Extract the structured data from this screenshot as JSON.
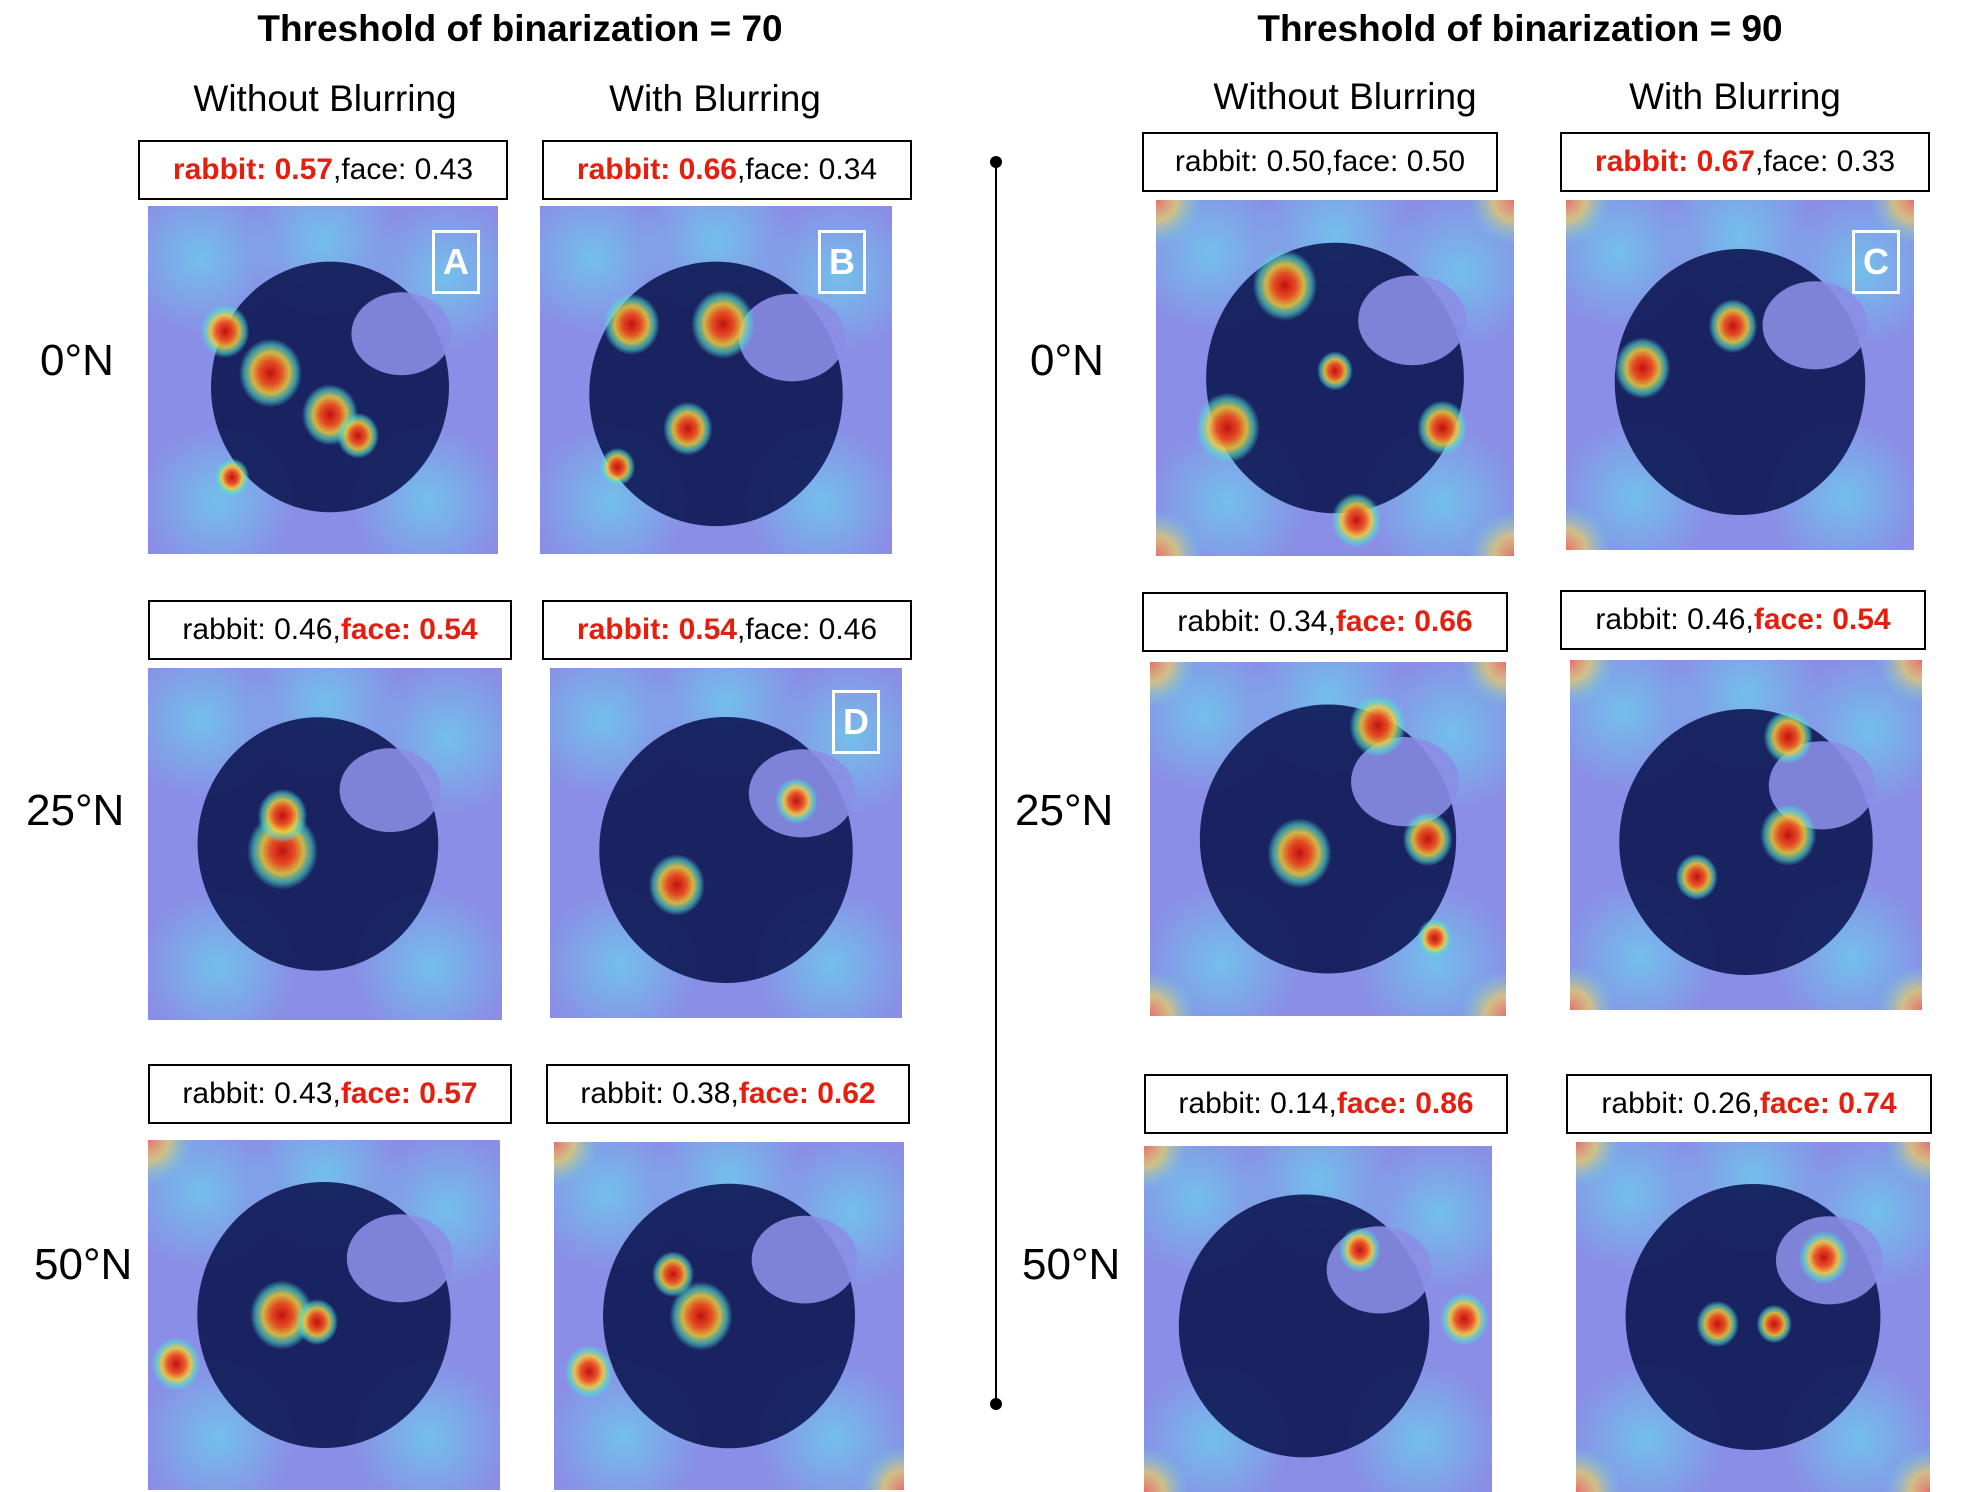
{
  "titles": {
    "left": "Threshold of binarization = 70",
    "right": "Threshold of binarization = 90"
  },
  "column_headers": {
    "left_without": "Without Blurring",
    "left_with": "With Blurring",
    "right_without": "Without Blurring",
    "right_with": "With Blurring"
  },
  "row_labels": {
    "left": [
      "0°N",
      "25°N",
      "50°N"
    ],
    "right": [
      "0°N",
      "25°N",
      "50°N"
    ]
  },
  "scores": {
    "t70_nb_0": {
      "p1": "rabbit: 0.57",
      "sep": ", ",
      "p2": "face: 0.43"
    },
    "t70_b_0": {
      "p1": "rabbit: 0.66",
      "sep": ", ",
      "p2": "face: 0.34"
    },
    "t70_nb_25": {
      "p1": "rabbit: 0.46",
      "sep": ", ",
      "p2": "face: 0.54"
    },
    "t70_b_25": {
      "p1": "rabbit: 0.54",
      "sep": ", ",
      "p2": "face: 0.46"
    },
    "t70_nb_50": {
      "p1": "rabbit: 0.43",
      "sep": ", ",
      "p2": "face: 0.57"
    },
    "t70_b_50": {
      "p1": "rabbit: 0.38",
      "sep": ", ",
      "p2": "face: 0.62"
    },
    "t90_nb_0": {
      "p1": "rabbit: 0.50",
      "sep": ", ",
      "p2": "face: 0.50"
    },
    "t90_b_0": {
      "p1": "rabbit: 0.67",
      "sep": ", ",
      "p2": "face: 0.33"
    },
    "t90_nb_25": {
      "p1": "rabbit: 0.34",
      "sep": ", ",
      "p2": "face: 0.66"
    },
    "t90_b_25": {
      "p1": "rabbit: 0.46",
      "sep": ", ",
      "p2": "face: 0.54"
    },
    "t90_nb_50": {
      "p1": "rabbit: 0.14",
      "sep": ", ",
      "p2": "face: 0.86"
    },
    "t90_b_50": {
      "p1": "rabbit: 0.26",
      "sep": ", ",
      "p2": "face: 0.74"
    }
  },
  "badges": {
    "a": "A",
    "b": "B",
    "c": "C",
    "d": "D"
  },
  "colors": {
    "highlight": "#e3200f",
    "heatmap_base": "#8a8ee6",
    "moon_dark": "#0a1450"
  }
}
